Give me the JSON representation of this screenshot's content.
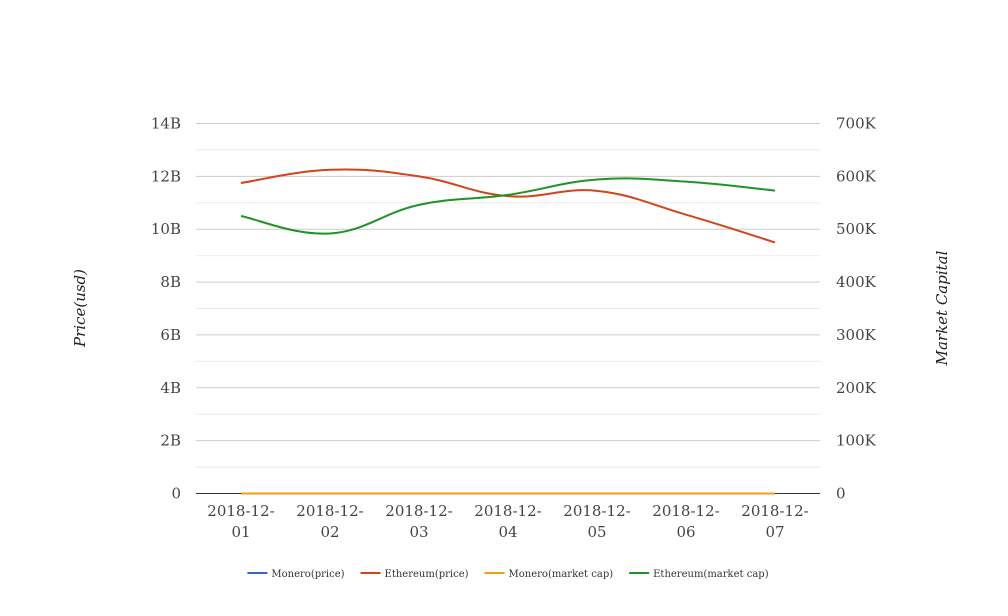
{
  "chart_data": {
    "type": "line",
    "categories": [
      "2018-12-01",
      "2018-12-02",
      "2018-12-03",
      "2018-12-04",
      "2018-12-05",
      "2018-12-06",
      "2018-12-07"
    ],
    "category_lines": [
      [
        "2018-12-",
        "01"
      ],
      [
        "2018-12-",
        "02"
      ],
      [
        "2018-12-",
        "03"
      ],
      [
        "2018-12-",
        "04"
      ],
      [
        "2018-12-",
        "05"
      ],
      [
        "2018-12-",
        "06"
      ],
      [
        "2018-12-",
        "07"
      ]
    ],
    "left_axis": {
      "label": "Price(usd)",
      "range": [
        0,
        14000000000
      ],
      "ticks": [
        0,
        2000000000,
        4000000000,
        6000000000,
        8000000000,
        10000000000,
        12000000000,
        14000000000
      ],
      "tick_labels": [
        "0",
        "2B",
        "4B",
        "6B",
        "8B",
        "10B",
        "12B",
        "14B"
      ]
    },
    "right_axis": {
      "label": "Market Capital",
      "range": [
        0,
        700000
      ],
      "ticks": [
        0,
        100000,
        200000,
        300000,
        400000,
        500000,
        600000,
        700000
      ],
      "tick_labels": [
        "0",
        "100K",
        "200K",
        "300K",
        "400K",
        "500K",
        "600K",
        "700K"
      ]
    },
    "grid": true,
    "legend_position": "bottom",
    "series": [
      {
        "name": "Monero(price)",
        "axis": "left",
        "color": "#3366cc",
        "values": [
          0,
          0,
          0,
          0,
          0,
          0,
          0
        ]
      },
      {
        "name": "Ethereum(price)",
        "axis": "left",
        "color": "#d2441e",
        "values": [
          11750000000,
          12250000000,
          12000000000,
          11250000000,
          11450000000,
          10550000000,
          9500000000
        ]
      },
      {
        "name": "Monero(market cap)",
        "axis": "right",
        "color": "#f59c12",
        "values": [
          0,
          0,
          0,
          0,
          0,
          0,
          0
        ]
      },
      {
        "name": "Ethereum(market cap)",
        "axis": "right",
        "color": "#1f9324",
        "values": [
          525000,
          492000,
          546000,
          565000,
          594000,
          590000,
          573000
        ]
      }
    ]
  }
}
